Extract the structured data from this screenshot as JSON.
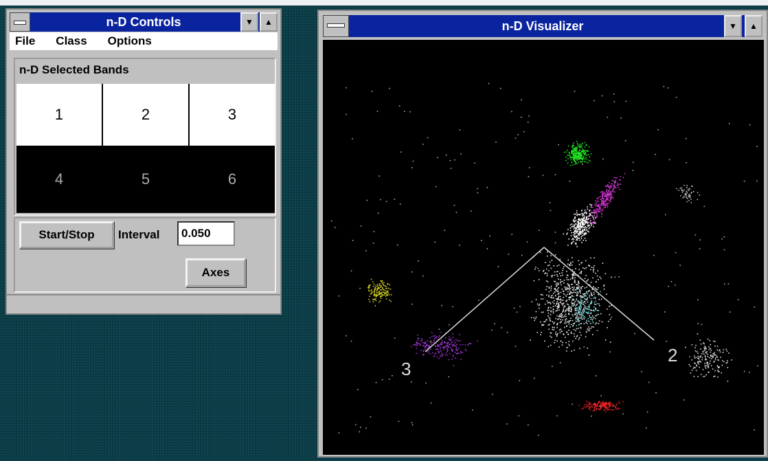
{
  "controls": {
    "title": "n-D Controls",
    "menu": [
      "File",
      "Class",
      "Options"
    ],
    "bands_title": "n-D Selected Bands",
    "bands": [
      "1",
      "2",
      "3",
      "4",
      "5",
      "6"
    ],
    "start_stop": "Start/Stop",
    "interval_label": "Interval",
    "interval_value": "0.050",
    "axes": "Axes"
  },
  "visualizer": {
    "title": "n-D Visualizer",
    "axis_labels": [
      "3",
      "2"
    ]
  }
}
